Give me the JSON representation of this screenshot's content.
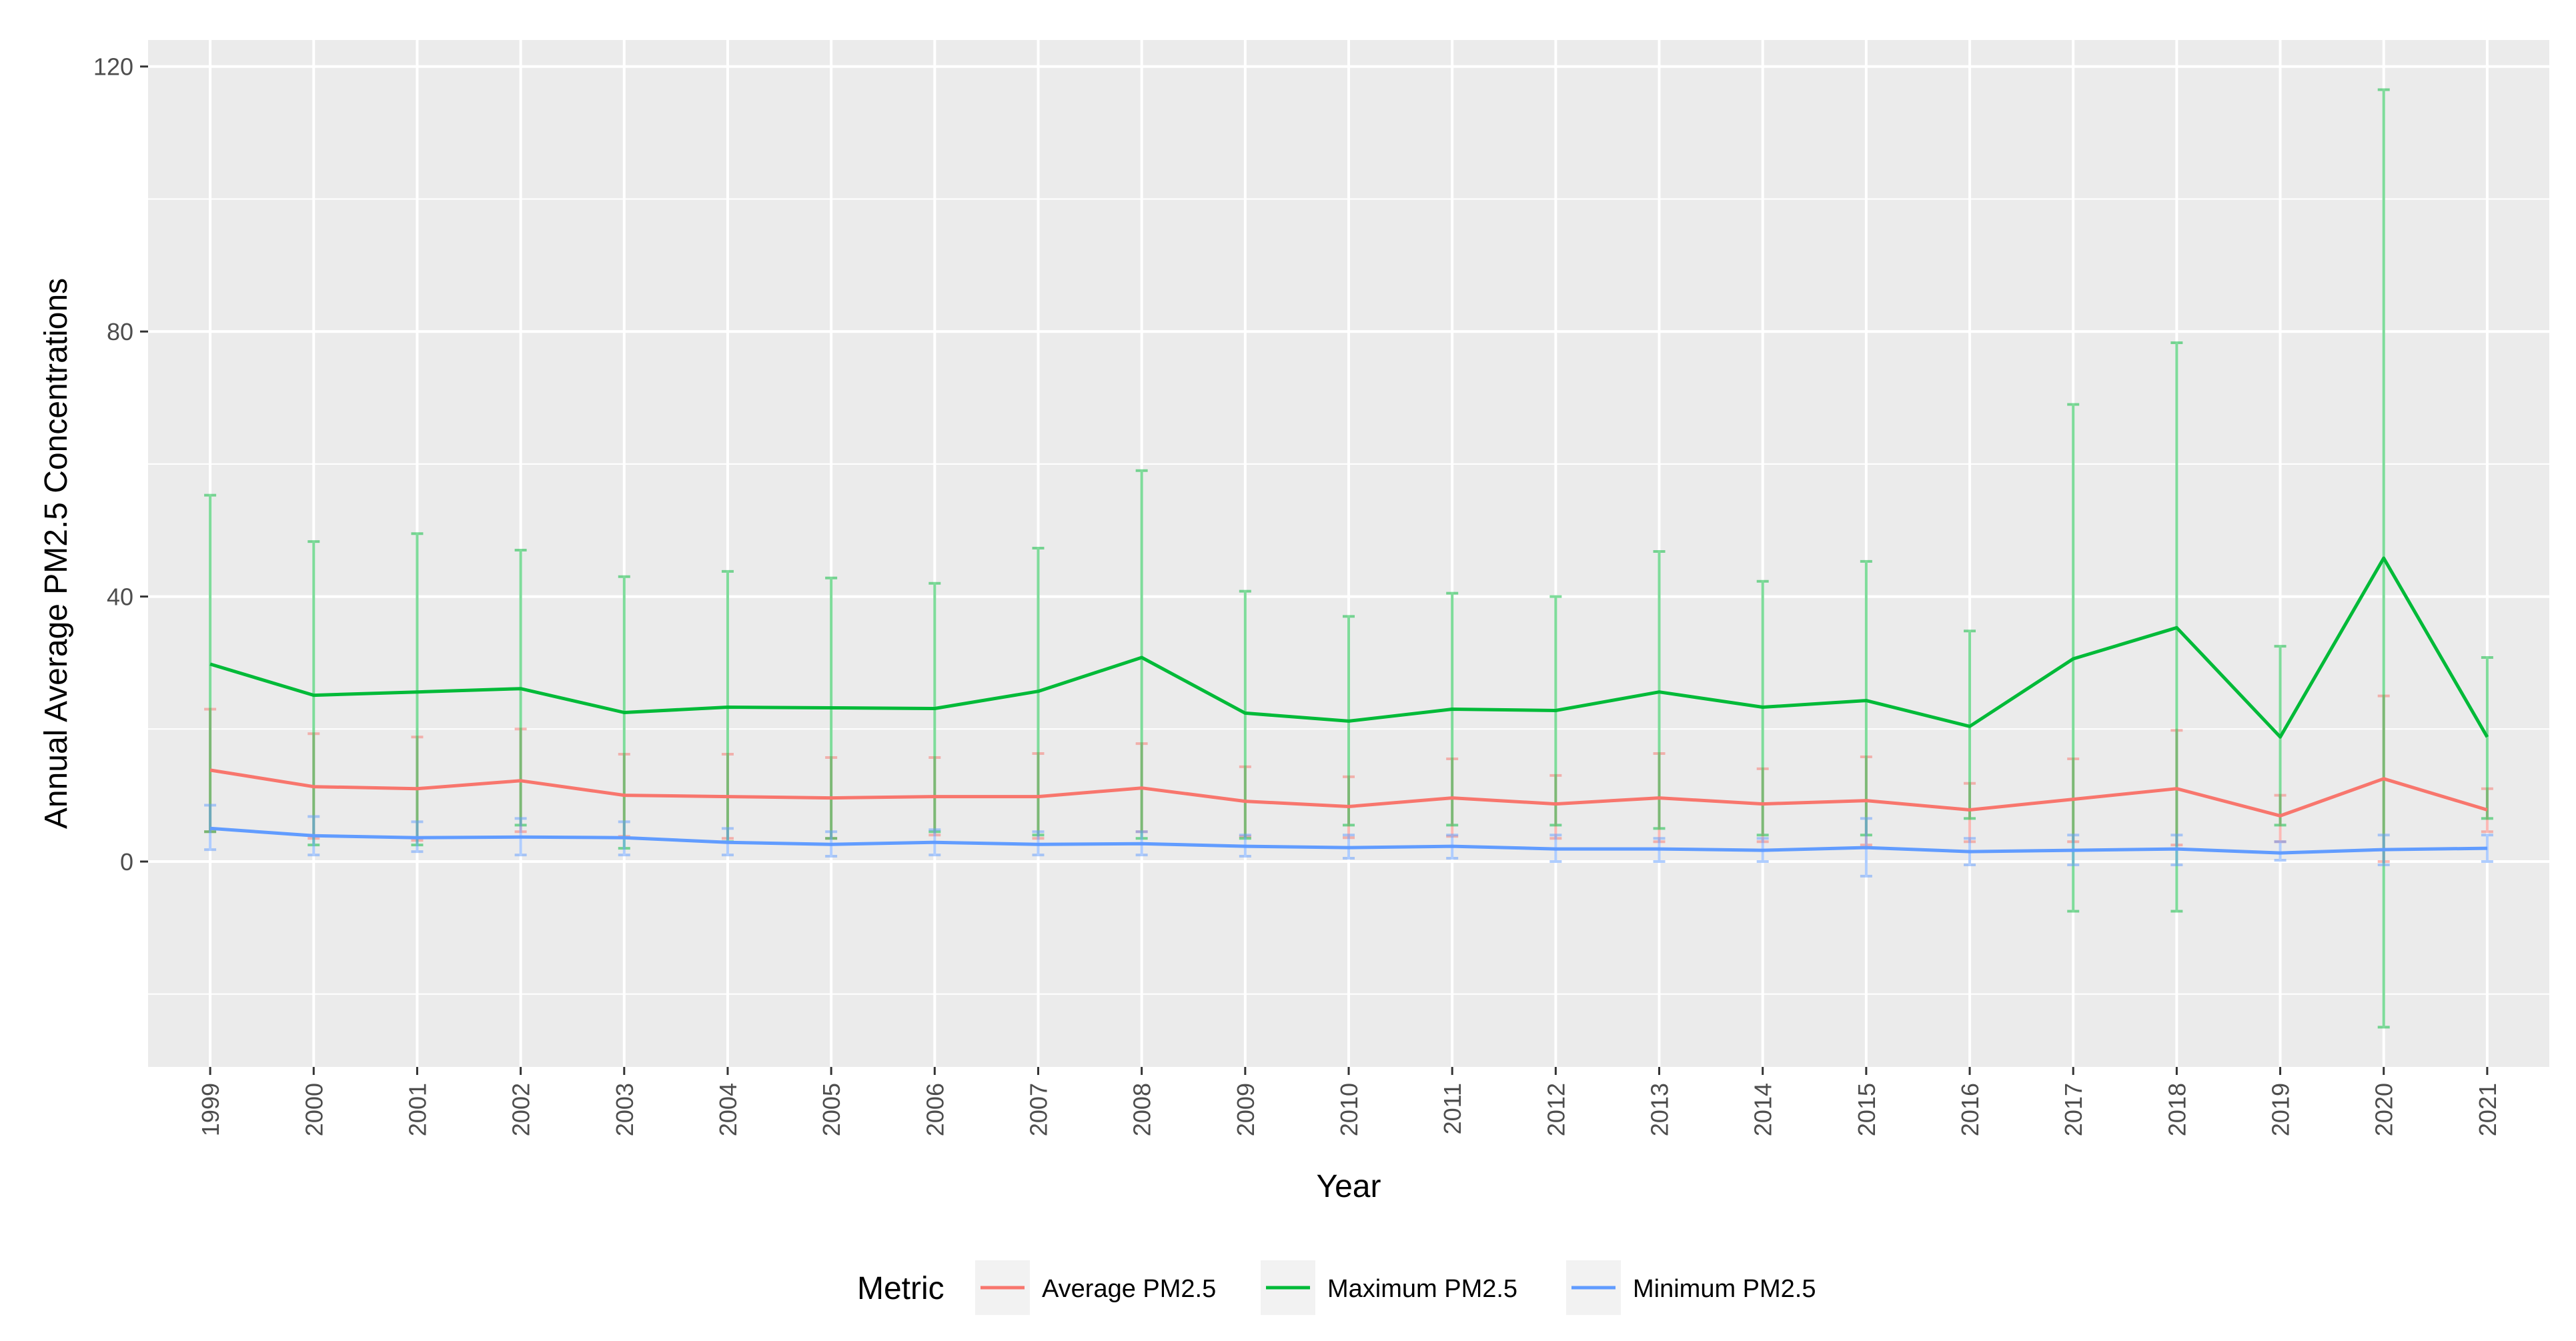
{
  "chart_data": {
    "type": "line",
    "title": "",
    "xlabel": "Year",
    "ylabel": "Annual Average PM2.5 Concentrations",
    "ylim": [
      -31,
      124
    ],
    "y_ticks": [
      0,
      40,
      80,
      120
    ],
    "y_tick_labels": [
      "0",
      "40",
      "80",
      "120"
    ],
    "grid": true,
    "legend": {
      "title": "Metric",
      "position": "bottom"
    },
    "categories": [
      "1999",
      "2000",
      "2001",
      "2002",
      "2003",
      "2004",
      "2005",
      "2006",
      "2007",
      "2008",
      "2009",
      "2010",
      "2011",
      "2012",
      "2013",
      "2014",
      "2015",
      "2016",
      "2017",
      "2018",
      "2019",
      "2020",
      "2021"
    ],
    "series": [
      {
        "name": "Average PM2.5",
        "color": "#F8766D",
        "values": [
          13.8,
          11.3,
          11.0,
          12.2,
          10.0,
          9.8,
          9.6,
          9.8,
          9.8,
          11.1,
          9.1,
          8.3,
          9.6,
          8.7,
          9.6,
          8.7,
          9.2,
          7.8,
          9.4,
          11.0,
          6.9,
          12.5,
          7.8
        ],
        "error_low": [
          4.5,
          3.5,
          3.2,
          4.5,
          3.8,
          3.5,
          3.5,
          4.0,
          3.5,
          4.5,
          3.8,
          3.6,
          3.8,
          3.5,
          3.0,
          3.0,
          2.5,
          3.0,
          3.0,
          2.5,
          3.0,
          0.0,
          4.5
        ],
        "error_high": [
          23.0,
          19.3,
          18.8,
          20.0,
          16.2,
          16.2,
          15.7,
          15.7,
          16.3,
          17.8,
          14.3,
          12.8,
          15.5,
          13.0,
          16.3,
          14.0,
          15.8,
          11.8,
          15.5,
          19.8,
          10.0,
          25.0,
          11.0
        ]
      },
      {
        "name": "Maximum PM2.5",
        "color": "#00BA38",
        "values": [
          29.8,
          25.1,
          25.6,
          26.1,
          22.5,
          23.3,
          23.2,
          23.1,
          25.7,
          30.8,
          22.4,
          21.2,
          23.0,
          22.8,
          25.6,
          23.3,
          24.3,
          20.4,
          30.6,
          35.3,
          18.8,
          45.8,
          18.8
        ],
        "error_low": [
          4.5,
          2.5,
          2.5,
          5.5,
          2.0,
          3.0,
          3.5,
          4.5,
          4.0,
          3.5,
          3.5,
          5.5,
          5.5,
          5.5,
          5.0,
          4.0,
          4.0,
          6.5,
          -7.5,
          -7.5,
          5.5,
          -25.0,
          6.5
        ],
        "error_high": [
          55.3,
          48.3,
          49.5,
          47.0,
          43.0,
          43.8,
          42.8,
          42.0,
          47.3,
          59.0,
          40.8,
          37.0,
          40.5,
          40.0,
          46.8,
          42.3,
          45.3,
          34.8,
          69.0,
          78.3,
          32.5,
          116.5,
          30.8
        ]
      },
      {
        "name": "Minimum PM2.5",
        "color": "#619CFF",
        "values": [
          5.0,
          3.9,
          3.6,
          3.7,
          3.6,
          2.9,
          2.6,
          2.9,
          2.6,
          2.7,
          2.3,
          2.1,
          2.3,
          1.9,
          1.9,
          1.7,
          2.1,
          1.5,
          1.7,
          1.9,
          1.3,
          1.8,
          2.0
        ],
        "error_low": [
          1.8,
          1.0,
          1.5,
          1.0,
          1.0,
          1.0,
          0.8,
          1.0,
          1.0,
          1.0,
          0.8,
          0.5,
          0.5,
          0.0,
          0.0,
          0.0,
          -2.2,
          -0.5,
          -0.5,
          -0.5,
          0.2,
          -0.5,
          0.0
        ],
        "error_high": [
          8.5,
          6.8,
          6.0,
          6.5,
          6.0,
          5.0,
          4.5,
          4.8,
          4.5,
          4.5,
          4.0,
          4.0,
          4.0,
          4.0,
          3.5,
          3.5,
          6.5,
          3.5,
          4.0,
          4.0,
          3.0,
          4.0,
          4.0
        ]
      }
    ]
  }
}
